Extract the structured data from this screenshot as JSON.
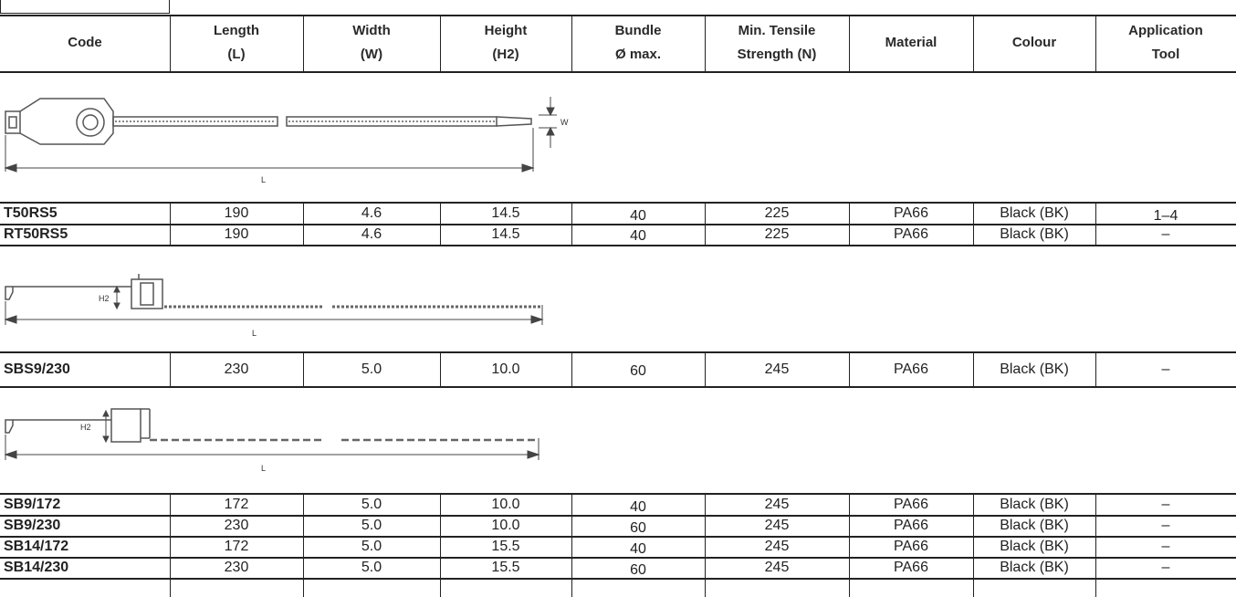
{
  "headers": [
    {
      "line1": "Code",
      "line2": ""
    },
    {
      "line1": "Length",
      "line2": "(L)"
    },
    {
      "line1": "Width",
      "line2": "(W)"
    },
    {
      "line1": "Height",
      "line2": "(H2)"
    },
    {
      "line1": "Bundle",
      "line2": "Ø max."
    },
    {
      "line1": "Min. Tensile",
      "line2": "Strength (N)"
    },
    {
      "line1": "Material",
      "line2": ""
    },
    {
      "line1": "Colour",
      "line2": ""
    },
    {
      "line1": "Application",
      "line2": "Tool"
    }
  ],
  "groups": [
    {
      "diagram": {
        "label_length": "L",
        "label_width": "W"
      },
      "rows": [
        [
          "T50RS5",
          "190",
          "4.6",
          "14.5",
          "40",
          "225",
          "PA66",
          "Black (BK)",
          "1–4"
        ],
        [
          "RT50RS5",
          "190",
          "4.6",
          "14.5",
          "40",
          "225",
          "PA66",
          "Black (BK)",
          "–"
        ]
      ]
    },
    {
      "diagram": {
        "label_length": "L",
        "label_height": "H2"
      },
      "rows": [
        [
          "SBS9/230",
          "230",
          "5.0",
          "10.0",
          "60",
          "245",
          "PA66",
          "Black (BK)",
          "–"
        ]
      ]
    },
    {
      "diagram": {
        "label_length": "L",
        "label_height": "H2"
      },
      "rows": [
        [
          "SB9/172",
          "172",
          "5.0",
          "10.0",
          "40",
          "245",
          "PA66",
          "Black (BK)",
          "–"
        ],
        [
          "SB9/230",
          "230",
          "5.0",
          "10.0",
          "60",
          "245",
          "PA66",
          "Black (BK)",
          "–"
        ],
        [
          "SB14/172",
          "172",
          "5.0",
          "15.5",
          "40",
          "245",
          "PA66",
          "Black (BK)",
          "–"
        ],
        [
          "SB14/230",
          "230",
          "5.0",
          "15.5",
          "60",
          "245",
          "PA66",
          "Black (BK)",
          "–"
        ]
      ]
    }
  ]
}
